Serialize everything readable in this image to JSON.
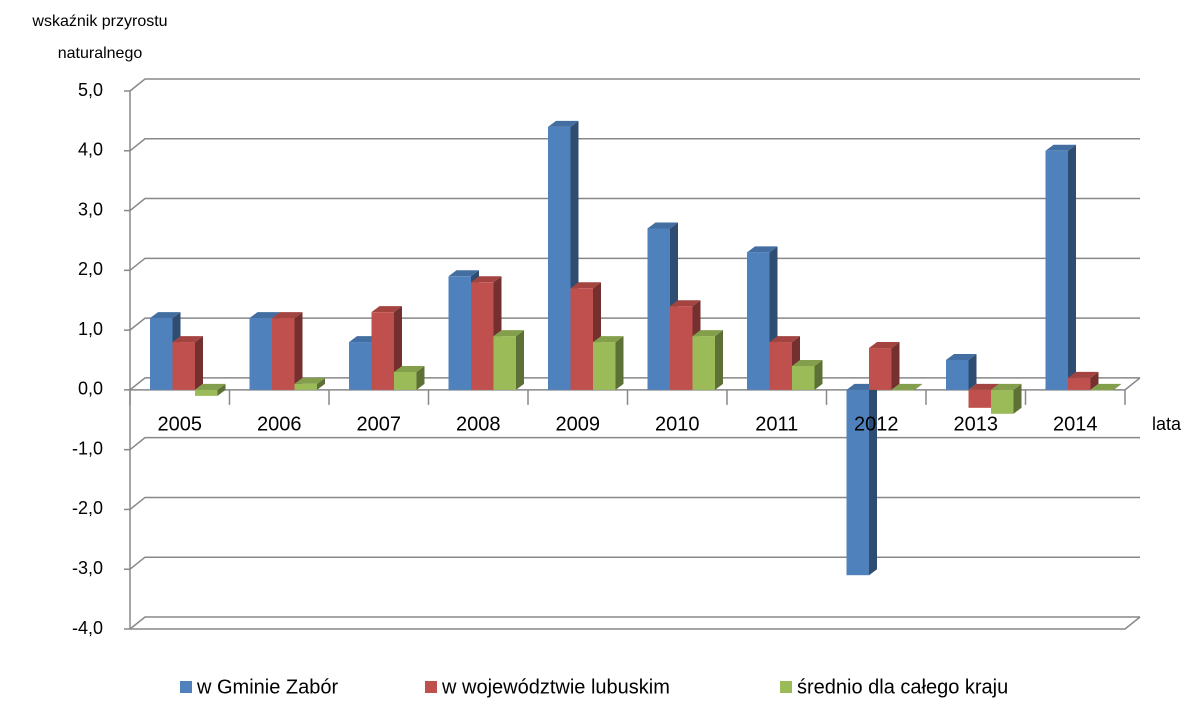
{
  "chart_data": {
    "type": "bar3d",
    "y_label": [
      "wskaźnik przyrostu",
      "naturalnego"
    ],
    "x_label": "lata",
    "categories": [
      "2005",
      "2006",
      "2007",
      "2008",
      "2009",
      "2010",
      "2011",
      "2012",
      "2013",
      "2014"
    ],
    "series": [
      {
        "name": "w Gminie Zabór",
        "color": "#4f81bd",
        "values": [
          1.2,
          1.2,
          0.8,
          1.9,
          4.4,
          2.7,
          2.3,
          -3.1,
          0.5,
          4.0
        ]
      },
      {
        "name": "w województwie lubuskim",
        "color": "#c0504d",
        "values": [
          0.8,
          1.2,
          1.3,
          1.8,
          1.7,
          1.4,
          0.8,
          0.7,
          -0.3,
          0.2
        ]
      },
      {
        "name": "średnio dla całego kraju",
        "color": "#9bbb59",
        "values": [
          -0.1,
          0.1,
          0.3,
          0.9,
          0.8,
          0.9,
          0.4,
          0.0,
          -0.4,
          0.0
        ]
      }
    ],
    "ylim": [
      -4,
      5
    ],
    "yticks": [
      {
        "value": -4,
        "label": "-4,0"
      },
      {
        "value": -3,
        "label": "-3,0"
      },
      {
        "value": -2,
        "label": "-2,0"
      },
      {
        "value": -1,
        "label": "-1,0"
      },
      {
        "value": 0,
        "label": "0,0"
      },
      {
        "value": 1,
        "label": "1,0"
      },
      {
        "value": 2,
        "label": "2,0"
      },
      {
        "value": 3,
        "label": "3,0"
      },
      {
        "value": 4,
        "label": "4,0"
      },
      {
        "value": 5,
        "label": "5,0"
      }
    ],
    "grid": true,
    "legend": "bottom"
  }
}
